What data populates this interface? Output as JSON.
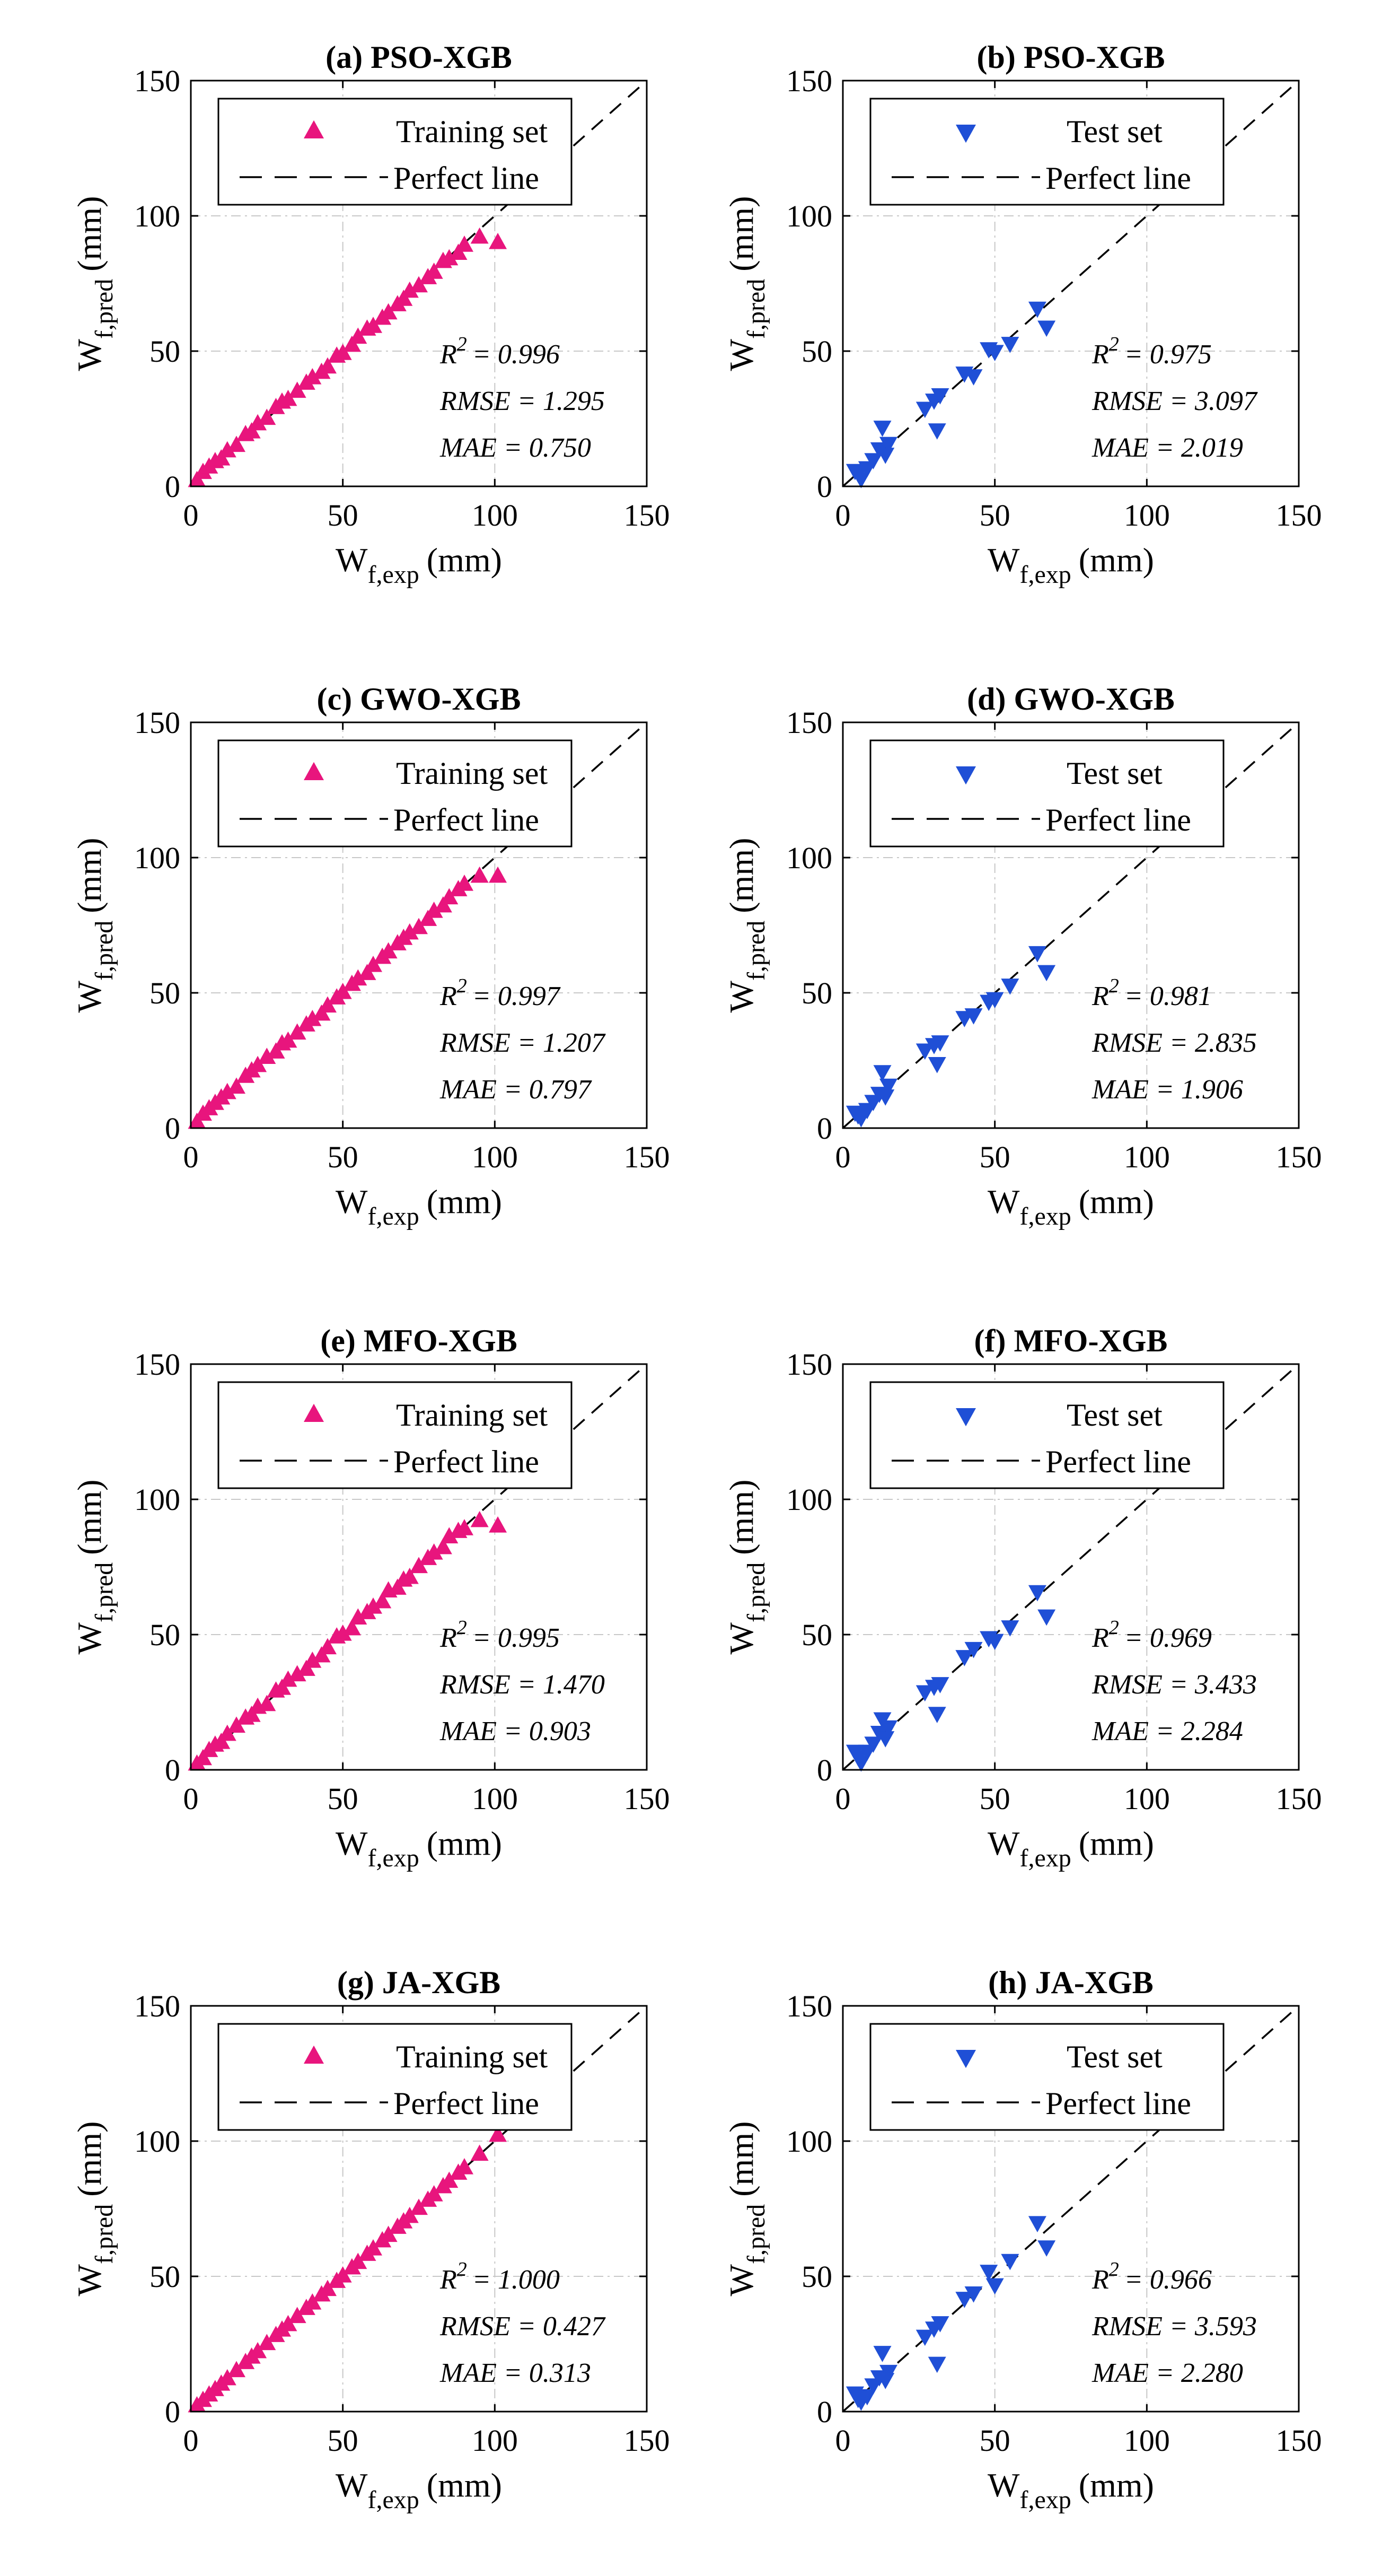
{
  "figure": {
    "x_label_main": "W",
    "x_label_sub": "f,exp",
    "x_label_unit": "(mm)",
    "y_label_main": "W",
    "y_label_sub": "f,pred",
    "y_label_unit": "(mm)",
    "colors": {
      "training": "#e8157d",
      "test": "#1f4fd6",
      "axes": "#000000",
      "grid": "#c8c8c8"
    }
  },
  "chart_data": [
    {
      "type": "scatter",
      "panel": "a",
      "title": "(a) PSO-XGB",
      "xlim": [
        0,
        150
      ],
      "ylim": [
        0,
        150
      ],
      "ticks": [
        0,
        50,
        100,
        150
      ],
      "grid": true,
      "legend": {
        "marker_label": "Training set",
        "line_label": "Perfect line",
        "position": "top"
      },
      "series": [
        {
          "name": "Training set",
          "marker": "triangle-up",
          "x": [
            2,
            4,
            6,
            8,
            10,
            12,
            15,
            18,
            20,
            22,
            25,
            28,
            30,
            32,
            35,
            38,
            40,
            43,
            45,
            48,
            50,
            53,
            55,
            58,
            60,
            63,
            65,
            68,
            70,
            72,
            75,
            78,
            80,
            83,
            85,
            88,
            90,
            95,
            101
          ],
          "y": [
            2,
            5,
            7,
            9,
            10,
            13,
            15,
            19,
            20,
            23,
            25,
            29,
            31,
            32,
            35,
            38,
            40,
            42,
            44,
            48,
            49,
            52,
            55,
            58,
            59,
            62,
            64,
            67,
            69,
            72,
            74,
            77,
            79,
            83,
            84,
            86,
            89,
            92,
            90
          ]
        },
        {
          "name": "Perfect line",
          "style": "dashed",
          "x": [
            0,
            150
          ],
          "y": [
            0,
            150
          ]
        }
      ],
      "metrics": {
        "r2_label": "R",
        "r2_value": "= 0.996",
        "rmse": "RMSE = 1.295",
        "mae": "MAE = 0.750"
      }
    },
    {
      "type": "scatter",
      "panel": "b",
      "title": "(b) PSO-XGB",
      "xlim": [
        0,
        150
      ],
      "ylim": [
        0,
        150
      ],
      "ticks": [
        0,
        50,
        100,
        150
      ],
      "grid": true,
      "legend": {
        "marker_label": "Test set",
        "line_label": "Perfect line",
        "position": "top"
      },
      "series": [
        {
          "name": "Test set",
          "marker": "triangle-down",
          "x": [
            4,
            5,
            6,
            8,
            10,
            12,
            13,
            14,
            15,
            27,
            30,
            31,
            32,
            40,
            43,
            48,
            50,
            55,
            64,
            67
          ],
          "y": [
            6,
            5,
            3,
            7,
            10,
            14,
            22,
            12,
            16,
            29,
            32,
            21,
            34,
            42,
            41,
            51,
            50,
            53,
            66,
            59
          ]
        },
        {
          "name": "Perfect line",
          "style": "dashed",
          "x": [
            0,
            150
          ],
          "y": [
            0,
            150
          ]
        }
      ],
      "metrics": {
        "r2_label": "R",
        "r2_value": "= 0.975",
        "rmse": "RMSE = 3.097",
        "mae": "MAE = 2.019"
      }
    },
    {
      "type": "scatter",
      "panel": "c",
      "title": "(c) GWO-XGB",
      "xlim": [
        0,
        150
      ],
      "ylim": [
        0,
        150
      ],
      "ticks": [
        0,
        50,
        100,
        150
      ],
      "grid": true,
      "legend": {
        "marker_label": "Training set",
        "line_label": "Perfect line",
        "position": "top"
      },
      "series": [
        {
          "name": "Training set",
          "marker": "triangle-up",
          "x": [
            2,
            4,
            6,
            8,
            10,
            12,
            15,
            18,
            20,
            22,
            25,
            28,
            30,
            32,
            35,
            38,
            40,
            43,
            45,
            48,
            50,
            53,
            55,
            58,
            60,
            63,
            65,
            68,
            70,
            72,
            75,
            78,
            80,
            83,
            85,
            88,
            90,
            95,
            101
          ],
          "y": [
            2,
            5,
            7,
            9,
            11,
            13,
            15,
            19,
            21,
            23,
            26,
            28,
            31,
            32,
            35,
            38,
            40,
            42,
            45,
            48,
            50,
            53,
            55,
            57,
            60,
            63,
            65,
            68,
            70,
            72,
            74,
            77,
            80,
            82,
            85,
            88,
            90,
            93,
            93
          ]
        },
        {
          "name": "Perfect line",
          "style": "dashed",
          "x": [
            0,
            150
          ],
          "y": [
            0,
            150
          ]
        }
      ],
      "metrics": {
        "r2_label": "R",
        "r2_value": "= 0.997",
        "rmse": "RMSE = 1.207",
        "mae": "MAE = 0.797"
      }
    },
    {
      "type": "scatter",
      "panel": "d",
      "title": "(d) GWO-XGB",
      "xlim": [
        0,
        150
      ],
      "ylim": [
        0,
        150
      ],
      "ticks": [
        0,
        50,
        100,
        150
      ],
      "grid": true,
      "legend": {
        "marker_label": "Test set",
        "line_label": "Perfect line",
        "position": "top"
      },
      "series": [
        {
          "name": "Test set",
          "marker": "triangle-down",
          "x": [
            4,
            5,
            6,
            8,
            10,
            12,
            13,
            14,
            15,
            27,
            30,
            31,
            32,
            40,
            43,
            48,
            50,
            55,
            64,
            67
          ],
          "y": [
            6,
            5,
            4,
            7,
            10,
            13,
            21,
            12,
            16,
            29,
            31,
            24,
            32,
            41,
            42,
            47,
            48,
            53,
            65,
            58
          ]
        },
        {
          "name": "Perfect line",
          "style": "dashed",
          "x": [
            0,
            150
          ],
          "y": [
            0,
            150
          ]
        }
      ],
      "metrics": {
        "r2_label": "R",
        "r2_value": "= 0.981",
        "rmse": "RMSE = 2.835",
        "mae": "MAE = 1.906"
      }
    },
    {
      "type": "scatter",
      "panel": "e",
      "title": "(e) MFO-XGB",
      "xlim": [
        0,
        150
      ],
      "ylim": [
        0,
        150
      ],
      "ticks": [
        0,
        50,
        100,
        150
      ],
      "grid": true,
      "legend": {
        "marker_label": "Training set",
        "line_label": "Perfect line",
        "position": "top"
      },
      "series": [
        {
          "name": "Training set",
          "marker": "triangle-up",
          "x": [
            2,
            4,
            6,
            8,
            10,
            12,
            15,
            18,
            20,
            22,
            25,
            28,
            30,
            32,
            35,
            38,
            40,
            43,
            45,
            48,
            50,
            53,
            55,
            58,
            60,
            63,
            65,
            68,
            70,
            72,
            75,
            78,
            80,
            83,
            85,
            88,
            90,
            95,
            101
          ],
          "y": [
            2,
            4,
            7,
            9,
            10,
            13,
            16,
            19,
            20,
            23,
            24,
            29,
            30,
            33,
            35,
            37,
            40,
            42,
            45,
            49,
            50,
            52,
            56,
            58,
            60,
            62,
            66,
            67,
            70,
            71,
            75,
            78,
            80,
            82,
            86,
            88,
            89,
            92,
            90
          ]
        },
        {
          "name": "Perfect line",
          "style": "dashed",
          "x": [
            0,
            150
          ],
          "y": [
            0,
            150
          ]
        }
      ],
      "metrics": {
        "r2_label": "R",
        "r2_value": "= 0.995",
        "rmse": "RMSE = 1.470",
        "mae": "MAE = 0.903"
      }
    },
    {
      "type": "scatter",
      "panel": "f",
      "title": "(f) MFO-XGB",
      "xlim": [
        0,
        150
      ],
      "ylim": [
        0,
        150
      ],
      "ticks": [
        0,
        50,
        100,
        150
      ],
      "grid": true,
      "legend": {
        "marker_label": "Test set",
        "line_label": "Perfect line",
        "position": "top"
      },
      "series": [
        {
          "name": "Test set",
          "marker": "triangle-down",
          "x": [
            4,
            5,
            6,
            8,
            10,
            12,
            13,
            14,
            15,
            27,
            30,
            31,
            32,
            40,
            43,
            48,
            50,
            55,
            64,
            67
          ],
          "y": [
            7,
            5,
            3,
            7,
            10,
            14,
            19,
            12,
            16,
            29,
            31,
            21,
            32,
            42,
            45,
            49,
            48,
            53,
            66,
            57
          ]
        },
        {
          "name": "Perfect line",
          "style": "dashed",
          "x": [
            0,
            150
          ],
          "y": [
            0,
            150
          ]
        }
      ],
      "metrics": {
        "r2_label": "R",
        "r2_value": "= 0.969",
        "rmse": "RMSE = 3.433",
        "mae": "MAE = 2.284"
      }
    },
    {
      "type": "scatter",
      "panel": "g",
      "title": "(g) JA-XGB",
      "xlim": [
        0,
        150
      ],
      "ylim": [
        0,
        150
      ],
      "ticks": [
        0,
        50,
        100,
        150
      ],
      "grid": true,
      "legend": {
        "marker_label": "Training set",
        "line_label": "Perfect line",
        "position": "top"
      },
      "series": [
        {
          "name": "Training set",
          "marker": "triangle-up",
          "x": [
            2,
            4,
            6,
            8,
            10,
            12,
            15,
            18,
            20,
            22,
            25,
            28,
            30,
            32,
            35,
            38,
            40,
            43,
            45,
            48,
            50,
            53,
            55,
            58,
            60,
            63,
            65,
            68,
            70,
            72,
            75,
            78,
            80,
            83,
            85,
            88,
            90,
            95,
            101
          ],
          "y": [
            2,
            4,
            6,
            8,
            10,
            12,
            15,
            18,
            20,
            22,
            25,
            28,
            30,
            32,
            35,
            38,
            40,
            43,
            45,
            48,
            50,
            53,
            55,
            58,
            60,
            63,
            65,
            68,
            70,
            72,
            75,
            78,
            80,
            83,
            85,
            88,
            90,
            95,
            102
          ]
        },
        {
          "name": "Perfect line",
          "style": "dashed",
          "x": [
            0,
            150
          ],
          "y": [
            0,
            150
          ]
        }
      ],
      "metrics": {
        "r2_label": "R",
        "r2_value": "= 1.000",
        "rmse": "RMSE = 0.427",
        "mae": "MAE = 0.313"
      }
    },
    {
      "type": "scatter",
      "panel": "h",
      "title": "(h) JA-XGB",
      "xlim": [
        0,
        150
      ],
      "ylim": [
        0,
        150
      ],
      "ticks": [
        0,
        50,
        100,
        150
      ],
      "grid": true,
      "legend": {
        "marker_label": "Test set",
        "line_label": "Perfect line",
        "position": "top"
      },
      "series": [
        {
          "name": "Test set",
          "marker": "triangle-down",
          "x": [
            4,
            5,
            6,
            8,
            10,
            12,
            13,
            14,
            15,
            27,
            30,
            31,
            32,
            40,
            43,
            48,
            50,
            55,
            64,
            67
          ],
          "y": [
            7,
            5,
            4,
            6,
            10,
            13,
            22,
            12,
            15,
            28,
            31,
            18,
            33,
            42,
            44,
            52,
            47,
            56,
            70,
            61
          ]
        },
        {
          "name": "Perfect line",
          "style": "dashed",
          "x": [
            0,
            150
          ],
          "y": [
            0,
            150
          ]
        }
      ],
      "metrics": {
        "r2_label": "R",
        "r2_value": "= 0.966",
        "rmse": "RMSE = 3.593",
        "mae": "MAE = 2.280"
      }
    }
  ]
}
